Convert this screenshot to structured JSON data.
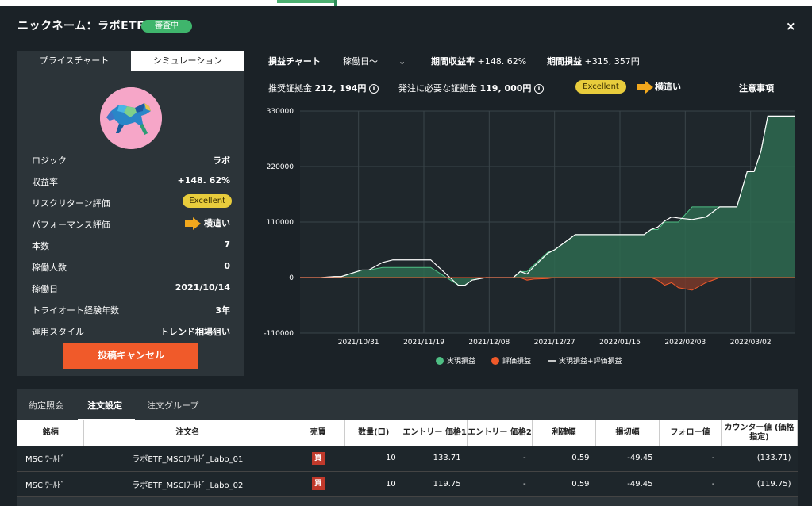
{
  "modal": {
    "title": "ニックネーム：ラボETF",
    "badge": "審査中",
    "close": "×"
  },
  "left": {
    "tabs": [
      "プライスチャート",
      "シミュレーション"
    ],
    "rows": [
      {
        "key": "ロジック",
        "value": "ラボ"
      },
      {
        "key": "収益率",
        "value": "+148. 62%"
      },
      {
        "key": "リスクリターン評価",
        "value": "Excellent"
      },
      {
        "key": "パフォーマンス評価",
        "value": "横這い"
      },
      {
        "key": "本数",
        "value": "7"
      },
      {
        "key": "稼働人数",
        "value": "0"
      },
      {
        "key": "稼働日",
        "value": "2021/10/14"
      },
      {
        "key": "トライオート経験年数",
        "value": "3年"
      },
      {
        "key": "運用スタイル",
        "value": "トレンド相場狙い"
      }
    ],
    "cancel_button": "投稿キャンセル"
  },
  "header": {
    "chart_label": "損益チャート",
    "range_select": "稼働日～",
    "period_return_label": "期間収益率",
    "period_return_value": "+148. 62%",
    "period_pnl_label": "期間損益",
    "period_pnl_value": "+315, 357円",
    "recommended_margin_label": "推奨証拠金",
    "recommended_margin_value": "212, 194円",
    "required_margin_label": "発注に必要な証拠金",
    "required_margin_value": "119, 000円",
    "rating": "Excellent",
    "performance": "横這い",
    "notice": "注意事項"
  },
  "colors": {
    "realized": "#2e6a50",
    "realized_line": "#4fbf84",
    "unrealized": "#7a3a2a",
    "unrealized_line": "#f05a2a",
    "total_line": "#ffffff",
    "accent": "#f05a2a",
    "badge": "#3fb56c"
  },
  "chart_data": {
    "type": "area",
    "title": "",
    "xlabel": "",
    "ylabel": "",
    "ylim": [
      -110000,
      330000
    ],
    "y_ticks": [
      "330000",
      "220000",
      "110000",
      "0",
      "-110000"
    ],
    "x_ticks": [
      "2021/10/31",
      "2021/11/19",
      "2021/12/08",
      "2021/12/27",
      "2022/01/15",
      "2022/02/03",
      "2022/03/02"
    ],
    "legend": [
      "実現損益",
      "評価損益",
      "実現損益+評価損益"
    ],
    "legend_position": "bottom",
    "grid": true,
    "x_days": [
      0,
      6,
      10,
      12,
      18,
      20,
      24,
      27,
      36,
      38,
      46,
      48,
      50,
      54,
      58,
      61,
      62,
      64,
      66,
      68,
      72,
      74,
      80,
      86,
      89,
      94,
      96,
      100,
      102,
      104,
      106,
      108,
      110,
      114,
      118,
      122,
      124,
      126,
      127,
      130,
      132,
      134,
      136,
      140,
      144
    ],
    "series": [
      {
        "name": "実現損益",
        "values": [
          0,
          0,
          2000,
          2000,
          15000,
          15000,
          20000,
          20000,
          20000,
          20000,
          -15000,
          -15000,
          -5000,
          0,
          0,
          0,
          0,
          12000,
          12000,
          25000,
          50000,
          55000,
          85000,
          85000,
          85000,
          85000,
          85000,
          85000,
          95000,
          95000,
          110000,
          110000,
          110000,
          140000,
          140000,
          140000,
          140000,
          140000,
          140000,
          210000,
          210000,
          250000,
          320000,
          320000,
          320000
        ]
      },
      {
        "name": "評価損益",
        "values": [
          0,
          0,
          0,
          0,
          0,
          0,
          0,
          0,
          0,
          0,
          0,
          0,
          0,
          0,
          0,
          0,
          0,
          0,
          -5000,
          -3000,
          -2000,
          0,
          0,
          0,
          0,
          0,
          0,
          0,
          0,
          -5000,
          -15000,
          -10000,
          -20000,
          -25000,
          -10000,
          0,
          0,
          0,
          0,
          0,
          0,
          0,
          0,
          0,
          0
        ]
      },
      {
        "name": "実現損益+評価損益",
        "values": [
          0,
          0,
          2000,
          2000,
          15000,
          15000,
          30000,
          35000,
          35000,
          35000,
          -15000,
          -15000,
          -5000,
          0,
          0,
          0,
          0,
          12000,
          7000,
          22000,
          48000,
          55000,
          85000,
          85000,
          85000,
          85000,
          85000,
          85000,
          95000,
          100000,
          112000,
          120000,
          118000,
          115000,
          120000,
          140000,
          140000,
          140000,
          140000,
          210000,
          210000,
          250000,
          320000,
          320000,
          320000
        ]
      }
    ]
  },
  "bottom": {
    "tabs": [
      "約定照会",
      "注文設定",
      "注文グループ"
    ],
    "columns": [
      "銘柄",
      "注文名",
      "売買",
      "数量(口)",
      "エントリー 価格1",
      "エントリー 価格2",
      "利確幅",
      "損切幅",
      "フォロー値",
      "カウンター値 (価格指定)"
    ],
    "rows": [
      [
        "MSCIﾜｰﾙﾄﾞ",
        "ラボETF_MSCIﾜｰﾙﾄﾞ_Labo_01",
        "買",
        "10",
        "133.71",
        "-",
        "0.59",
        "-49.45",
        "-",
        "(133.71)"
      ],
      [
        "MSCIﾜｰﾙﾄﾞ",
        "ラボETF_MSCIﾜｰﾙﾄﾞ_Labo_02",
        "買",
        "10",
        "119.75",
        "-",
        "0.59",
        "-49.45",
        "-",
        "(119.75)"
      ]
    ]
  }
}
